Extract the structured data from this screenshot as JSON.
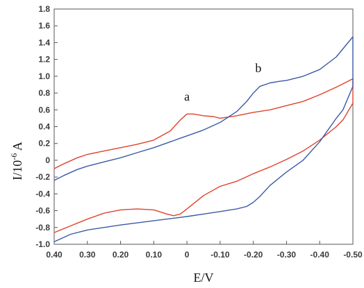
{
  "chart_data": {
    "type": "line",
    "title": "",
    "xlabel": "E/V",
    "ylabel_main": "I/10",
    "ylabel_exp": "-6",
    "ylabel_unit": " A",
    "xlim": [
      0.4,
      -0.5
    ],
    "ylim": [
      -1.0,
      1.8
    ],
    "x_ticks": [
      0.4,
      0.3,
      0.2,
      0.1,
      0.0,
      -0.1,
      -0.2,
      -0.3,
      -0.4,
      -0.5
    ],
    "x_tick_labels": [
      "0.40",
      "0.30",
      "0.20",
      "0.10",
      "0",
      "-0.10",
      "-0.20",
      "-0.30",
      "-0.40",
      "-0.50"
    ],
    "y_ticks": [
      -1.0,
      -0.8,
      -0.6,
      -0.4,
      -0.2,
      0,
      0.2,
      0.4,
      0.6,
      0.8,
      1.0,
      1.2,
      1.4,
      1.6,
      1.8
    ],
    "y_tick_labels": [
      "-1.0",
      "-0.8",
      "-0.6",
      "-0.4",
      "-0.2",
      "0",
      "0.2",
      "0.4",
      "0.6",
      "0.8",
      "1.0",
      "1.2",
      "1.4",
      "1.6",
      "1.8"
    ],
    "grid": false,
    "series": [
      {
        "name": "a",
        "color": "#e0412b",
        "x": [
          0.4,
          0.37,
          0.33,
          0.3,
          0.25,
          0.2,
          0.15,
          0.1,
          0.05,
          0.02,
          0.0,
          -0.02,
          -0.05,
          -0.08,
          -0.1,
          -0.15,
          -0.2,
          -0.25,
          -0.3,
          -0.35,
          -0.4,
          -0.45,
          -0.5,
          -0.5,
          -0.47,
          -0.45,
          -0.4,
          -0.35,
          -0.3,
          -0.25,
          -0.2,
          -0.15,
          -0.1,
          -0.05,
          0.0,
          0.02,
          0.04,
          0.06,
          0.1,
          0.15,
          0.2,
          0.25,
          0.3,
          0.35,
          0.4
        ],
        "y": [
          -0.1,
          -0.04,
          0.03,
          0.07,
          0.11,
          0.15,
          0.19,
          0.24,
          0.35,
          0.48,
          0.55,
          0.55,
          0.53,
          0.52,
          0.5,
          0.53,
          0.57,
          0.6,
          0.65,
          0.7,
          0.78,
          0.87,
          0.97,
          0.68,
          0.48,
          0.4,
          0.24,
          0.11,
          0.01,
          -0.08,
          -0.16,
          -0.25,
          -0.31,
          -0.42,
          -0.58,
          -0.64,
          -0.66,
          -0.64,
          -0.59,
          -0.58,
          -0.59,
          -0.63,
          -0.7,
          -0.78,
          -0.86
        ]
      },
      {
        "name": "b",
        "color": "#3a59a6",
        "x": [
          0.4,
          0.37,
          0.33,
          0.3,
          0.25,
          0.2,
          0.15,
          0.1,
          0.05,
          0.0,
          -0.05,
          -0.1,
          -0.15,
          -0.18,
          -0.2,
          -0.22,
          -0.25,
          -0.28,
          -0.3,
          -0.35,
          -0.4,
          -0.45,
          -0.5,
          -0.5,
          -0.47,
          -0.45,
          -0.4,
          -0.35,
          -0.3,
          -0.25,
          -0.22,
          -0.2,
          -0.18,
          -0.15,
          -0.1,
          -0.05,
          0.0,
          0.1,
          0.2,
          0.3,
          0.35,
          0.4
        ],
        "y": [
          -0.24,
          -0.18,
          -0.11,
          -0.07,
          -0.02,
          0.03,
          0.09,
          0.15,
          0.22,
          0.29,
          0.36,
          0.45,
          0.58,
          0.7,
          0.8,
          0.88,
          0.92,
          0.94,
          0.95,
          1.0,
          1.08,
          1.23,
          1.47,
          0.88,
          0.6,
          0.5,
          0.22,
          0.0,
          -0.14,
          -0.3,
          -0.43,
          -0.5,
          -0.55,
          -0.58,
          -0.61,
          -0.64,
          -0.67,
          -0.72,
          -0.77,
          -0.83,
          -0.88,
          -0.97
        ]
      }
    ],
    "annotations": [
      {
        "text": "a",
        "x": 0.0,
        "y": 0.71
      },
      {
        "text": "b",
        "x": -0.215,
        "y": 1.05
      }
    ]
  }
}
